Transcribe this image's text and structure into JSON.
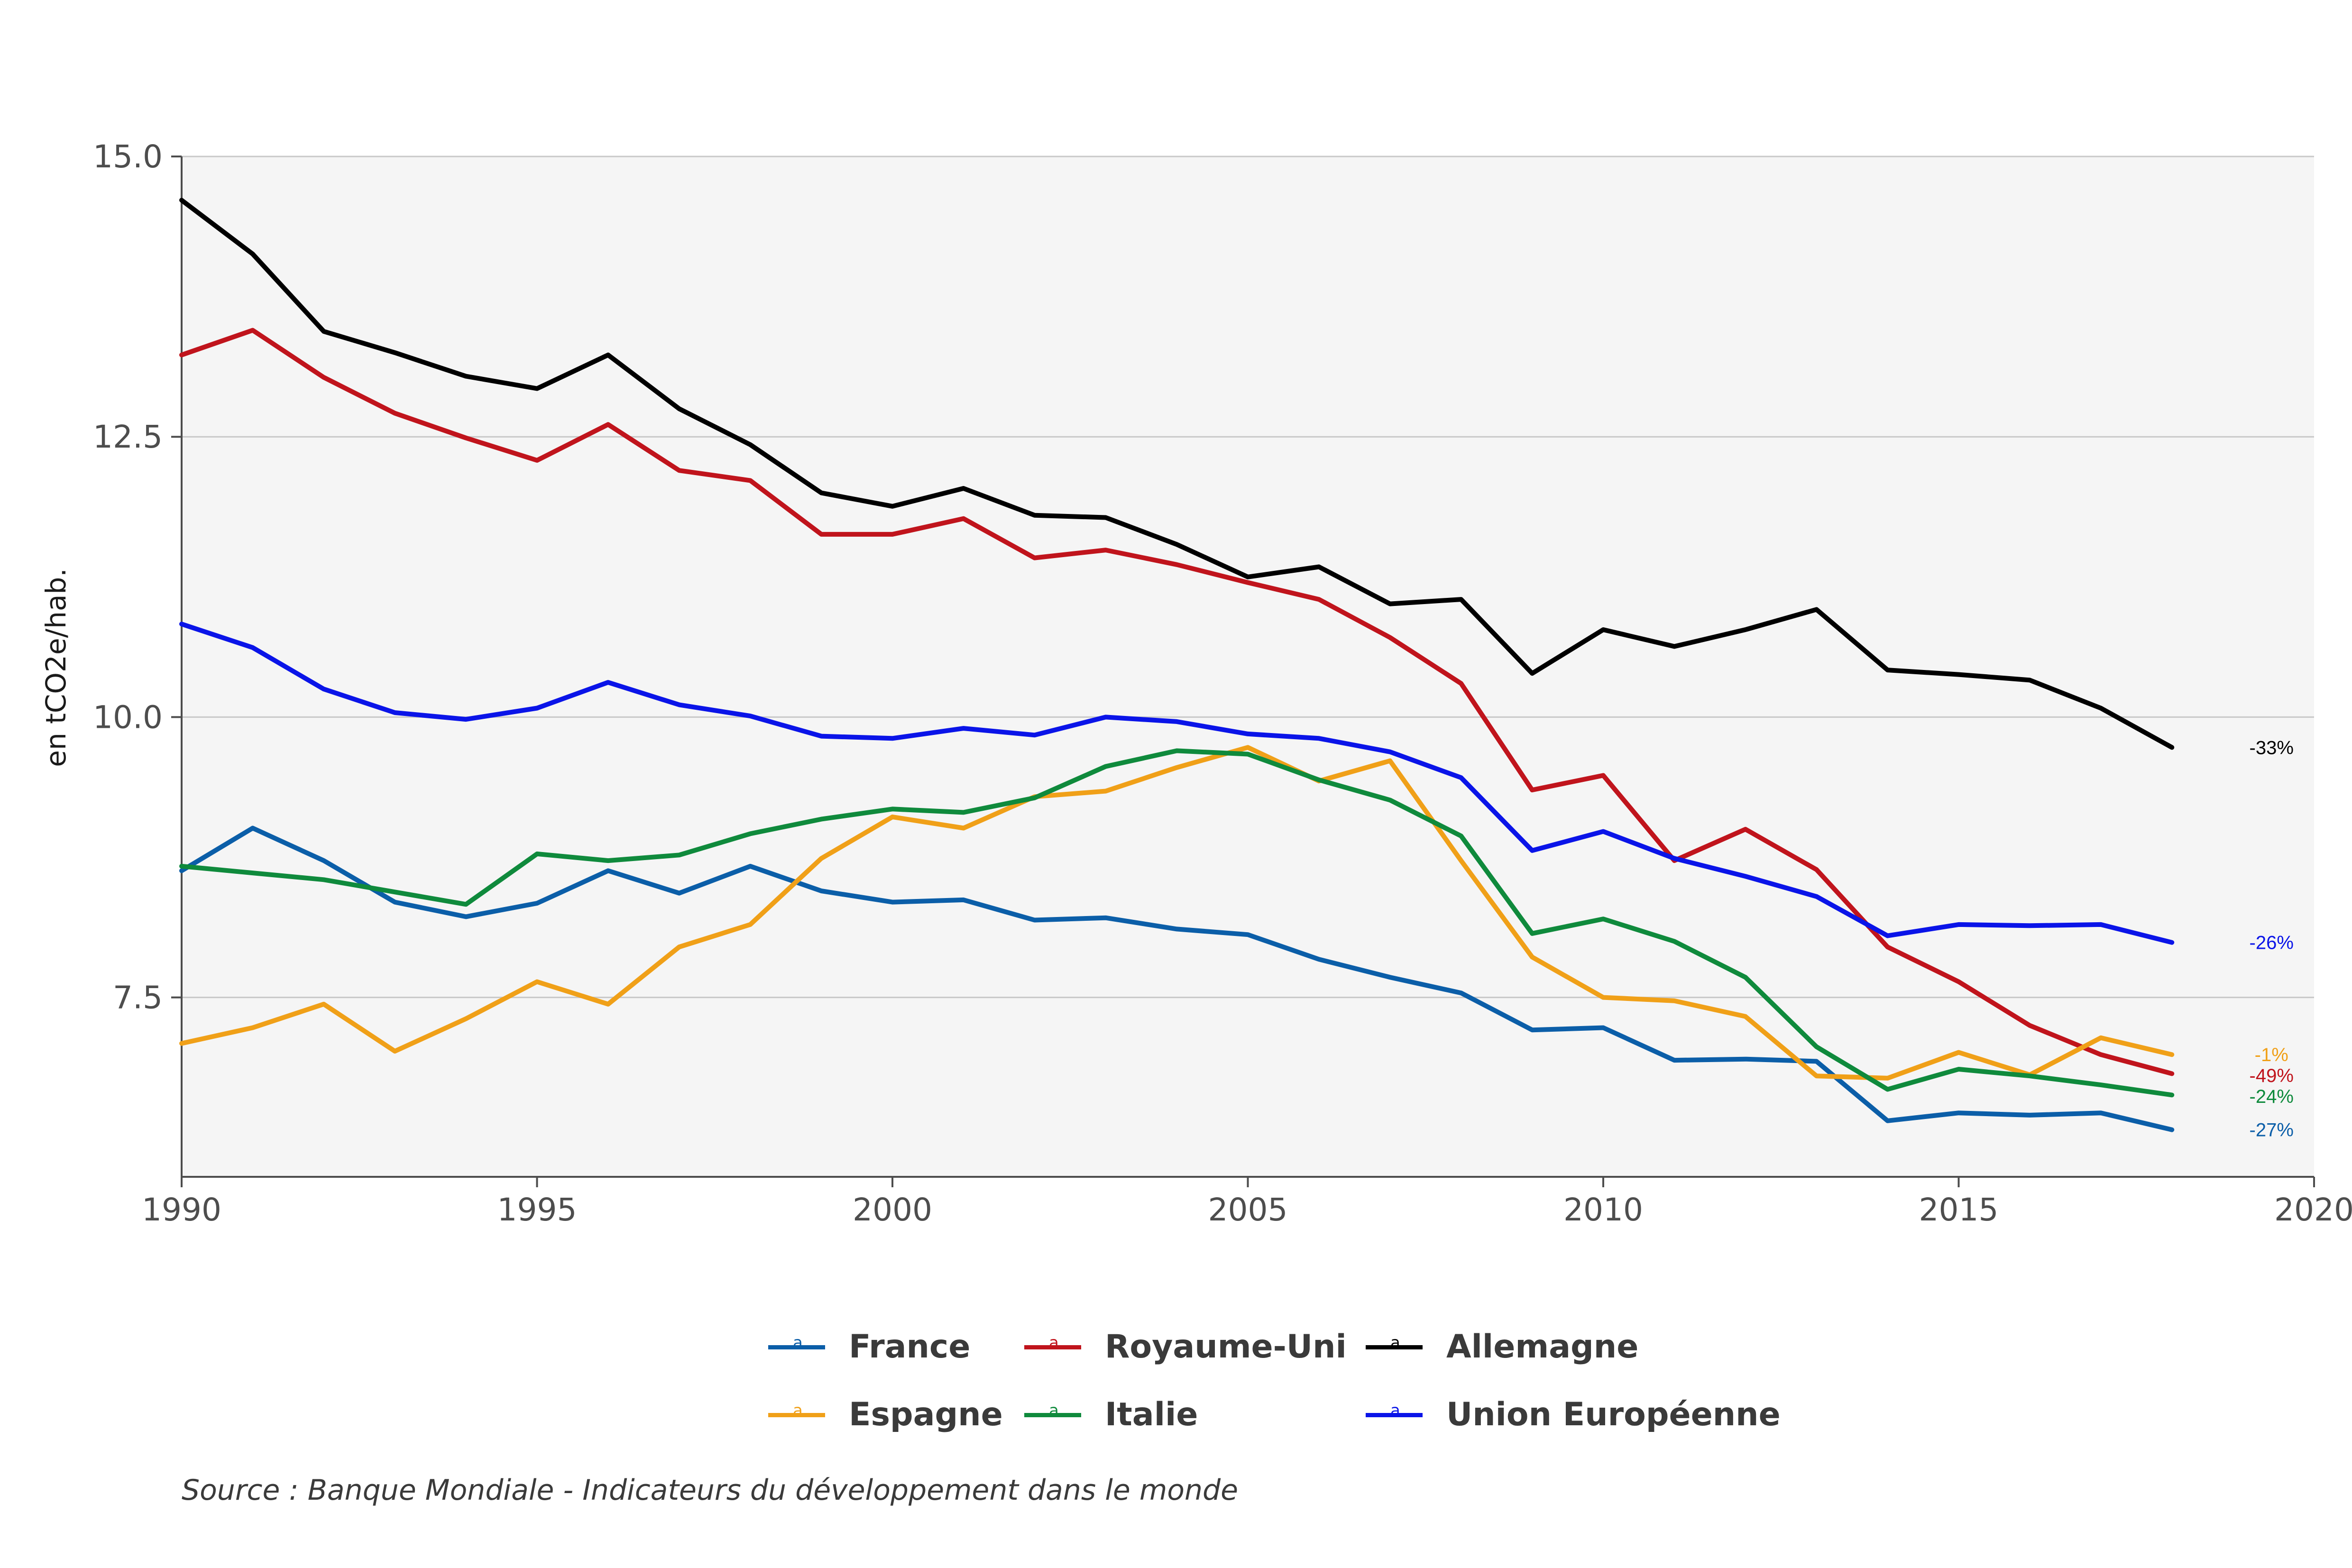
{
  "chart_data": {
    "type": "line",
    "title": "",
    "xlabel": "",
    "ylabel": "en tCO2e/hab.",
    "xlim": [
      1990,
      2020
    ],
    "ylim": [
      5.9,
      15.0
    ],
    "x_ticks": [
      1990,
      1995,
      2000,
      2005,
      2010,
      2015,
      2020
    ],
    "y_ticks": [
      7.5,
      10.0,
      12.5,
      15.0
    ],
    "y_tick_labels": [
      "7.5",
      "10.0",
      "12.5",
      "15.0"
    ],
    "grid": "horizontal",
    "legend_position": "bottom",
    "x": [
      1990,
      1991,
      1992,
      1993,
      1994,
      1995,
      1996,
      1997,
      1998,
      1999,
      2000,
      2001,
      2002,
      2003,
      2004,
      2005,
      2006,
      2007,
      2008,
      2009,
      2010,
      2011,
      2012,
      2013,
      2014,
      2015,
      2016,
      2017,
      2018
    ],
    "series": [
      {
        "name": "France",
        "color": "#0b5ea8",
        "end_label": "-27%",
        "values": [
          8.63,
          9.01,
          8.72,
          8.35,
          8.22,
          8.34,
          8.63,
          8.43,
          8.67,
          8.45,
          8.35,
          8.37,
          8.19,
          8.21,
          8.11,
          8.06,
          7.84,
          7.68,
          7.54,
          7.21,
          7.23,
          6.94,
          6.95,
          6.93,
          6.4,
          6.47,
          6.45,
          6.47,
          6.32
        ]
      },
      {
        "name": "Royaume-Uni",
        "color": "#c0141c",
        "end_label": "-49%",
        "values": [
          13.23,
          13.45,
          13.03,
          12.71,
          12.49,
          12.29,
          12.61,
          12.2,
          12.11,
          11.63,
          11.63,
          11.77,
          11.42,
          11.49,
          11.36,
          11.2,
          11.05,
          10.71,
          10.3,
          9.35,
          9.48,
          8.72,
          9.0,
          8.64,
          7.95,
          7.64,
          7.25,
          6.99,
          6.82
        ]
      },
      {
        "name": "Allemagne",
        "color": "#000000",
        "end_label": "-33%",
        "values": [
          14.61,
          14.13,
          13.44,
          13.25,
          13.04,
          12.93,
          13.23,
          12.75,
          12.43,
          12.0,
          11.88,
          12.04,
          11.8,
          11.78,
          11.54,
          11.25,
          11.34,
          11.01,
          11.05,
          10.39,
          10.78,
          10.63,
          10.78,
          10.96,
          10.42,
          10.38,
          10.33,
          10.08,
          9.73
        ]
      },
      {
        "name": "Espagne",
        "color": "#f0a018",
        "end_label": "-1%",
        "values": [
          7.09,
          7.23,
          7.44,
          7.02,
          7.31,
          7.64,
          7.44,
          7.95,
          8.15,
          8.74,
          9.11,
          9.01,
          9.29,
          9.34,
          9.55,
          9.73,
          9.43,
          9.61,
          8.72,
          7.86,
          7.5,
          7.47,
          7.33,
          6.8,
          6.78,
          7.01,
          6.81,
          7.14,
          6.99
        ]
      },
      {
        "name": "Italie",
        "color": "#0f8a3c",
        "end_label": "-24%",
        "values": [
          8.67,
          8.61,
          8.55,
          8.44,
          8.33,
          8.78,
          8.72,
          8.77,
          8.96,
          9.09,
          9.18,
          9.15,
          9.28,
          9.56,
          9.7,
          9.67,
          9.44,
          9.26,
          8.94,
          8.07,
          8.2,
          8.0,
          7.68,
          7.06,
          6.68,
          6.86,
          6.8,
          6.72,
          6.63
        ]
      },
      {
        "name": "Union Européenne",
        "color": "#0a14e8",
        "end_label": "-26%",
        "values": [
          10.83,
          10.62,
          10.25,
          10.04,
          9.98,
          10.08,
          10.31,
          10.11,
          10.01,
          9.83,
          9.81,
          9.9,
          9.84,
          10.0,
          9.96,
          9.85,
          9.81,
          9.69,
          9.46,
          8.81,
          8.98,
          8.74,
          8.58,
          8.4,
          8.05,
          8.15,
          8.14,
          8.15,
          7.99
        ]
      }
    ]
  },
  "legend": {
    "items": [
      {
        "label": "France",
        "color": "#0b5ea8",
        "glyph": "a"
      },
      {
        "label": "Royaume-Uni",
        "color": "#c0141c",
        "glyph": "a"
      },
      {
        "label": "Allemagne",
        "color": "#000000",
        "glyph": "a"
      },
      {
        "label": "Espagne",
        "color": "#f0a018",
        "glyph": "a"
      },
      {
        "label": "Italie",
        "color": "#0f8a3c",
        "glyph": "a"
      },
      {
        "label": "Union Européenne",
        "color": "#0a14e8",
        "glyph": "a"
      }
    ]
  },
  "source": "Source : Banque Mondiale - Indicateurs du développement dans le monde"
}
